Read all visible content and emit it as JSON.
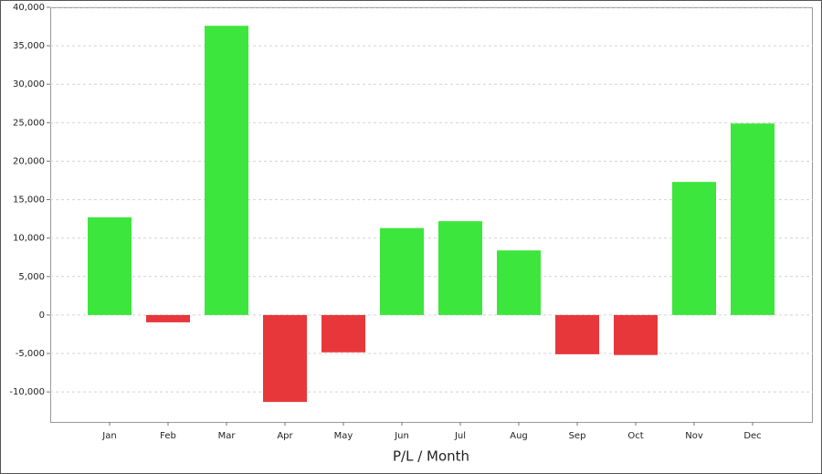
{
  "chart_data": {
    "type": "bar",
    "x_label": "P/L / Month",
    "categories": [
      "Jan",
      "Feb",
      "Mar",
      "Apr",
      "May",
      "Jun",
      "Jul",
      "Aug",
      "Sep",
      "Oct",
      "Nov",
      "Dec"
    ],
    "values": [
      12700,
      -950,
      37600,
      -11300,
      -4850,
      11300,
      12200,
      8400,
      -5100,
      -5200,
      17300,
      24900
    ],
    "positive_color": "#3de63d",
    "negative_color": "#e8373b",
    "ylim": [
      -13900,
      40000
    ],
    "yticks": [
      {
        "value": -10000,
        "label": "-10,000"
      },
      {
        "value": -5000,
        "label": "-5,000"
      },
      0,
      {
        "value": 5000,
        "label": "5,000"
      },
      {
        "value": 10000,
        "label": "10,000"
      },
      {
        "value": 15000,
        "label": "15,000"
      },
      {
        "value": 20000,
        "label": "20,000"
      },
      {
        "value": 25000,
        "label": "25,000"
      },
      {
        "value": 30000,
        "label": "30,000"
      },
      {
        "value": 35000,
        "label": "35,000"
      },
      {
        "value": 40000,
        "label": "40,000"
      }
    ],
    "grid": true
  }
}
